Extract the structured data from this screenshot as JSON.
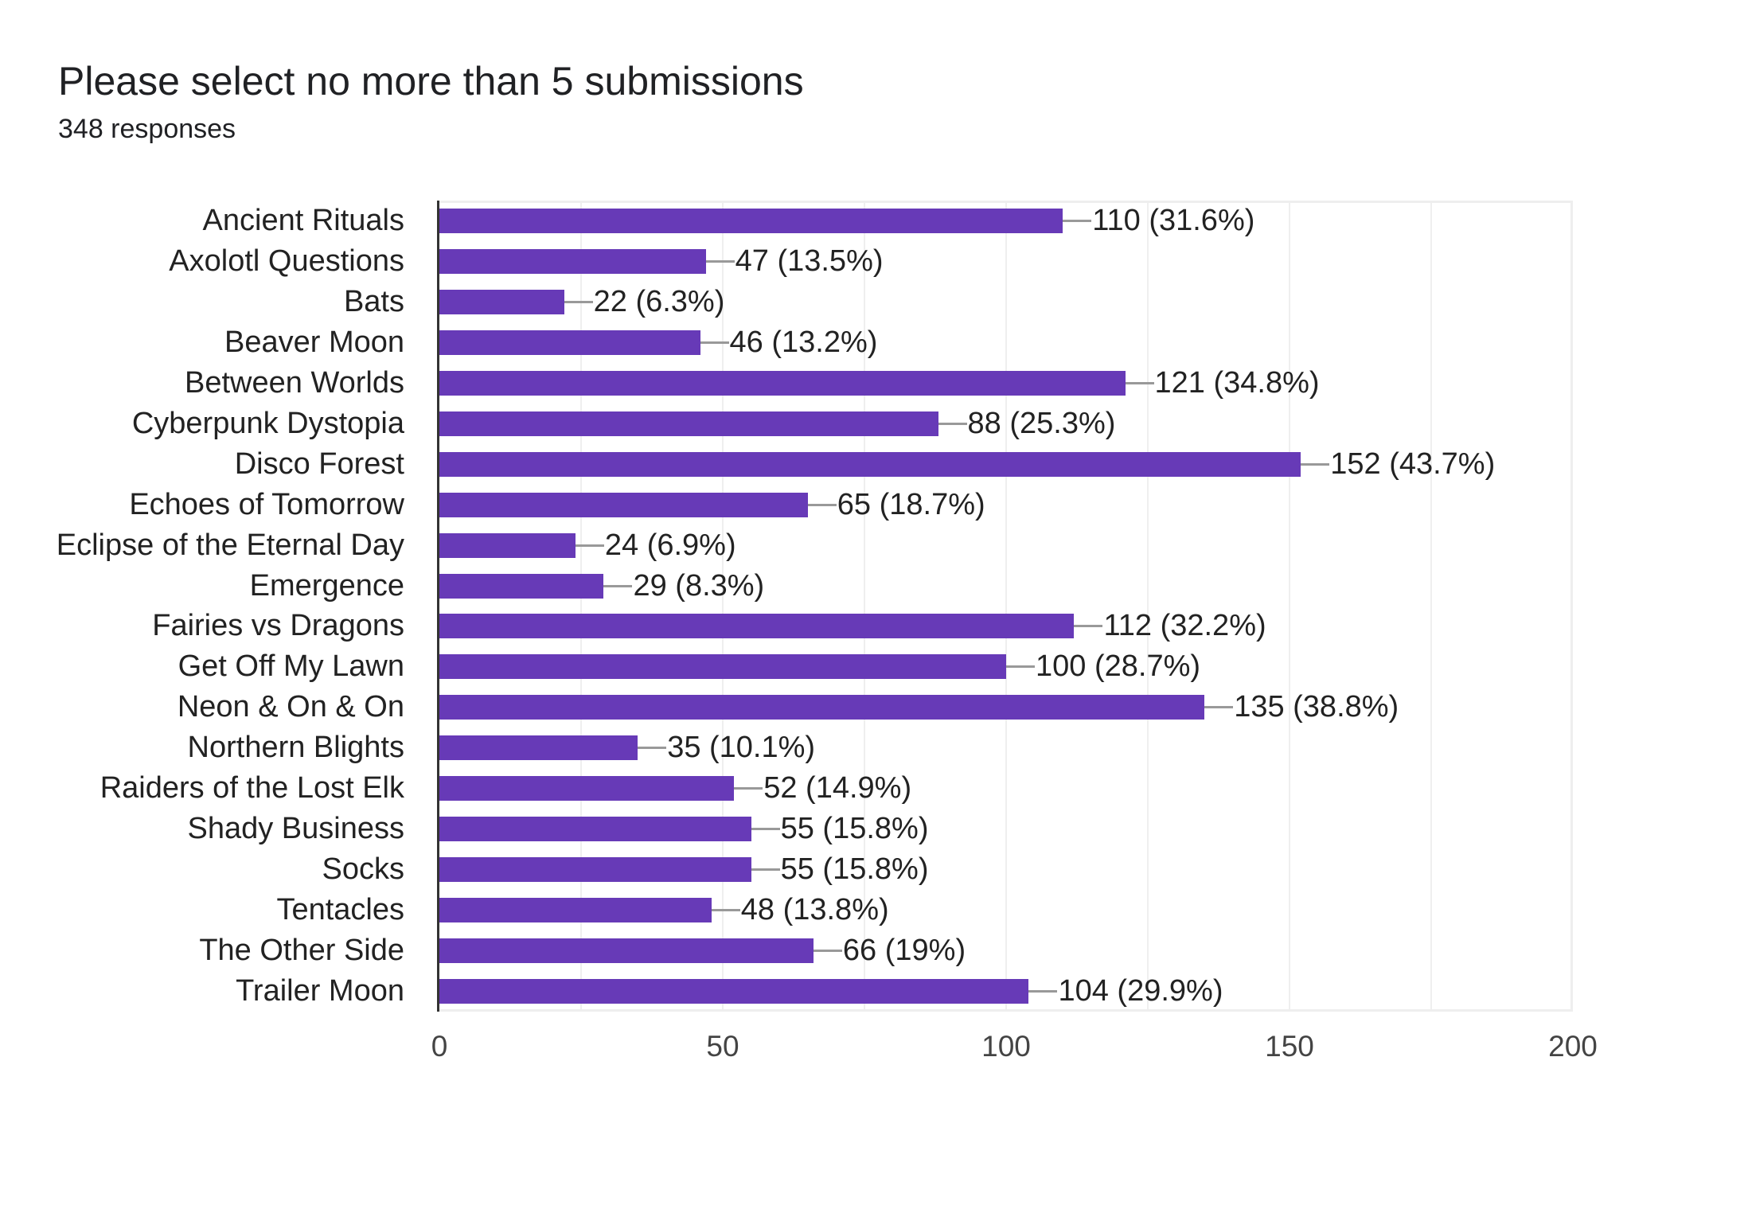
{
  "header": {
    "title": "Please select no more than 5 submissions",
    "subtitle": "348 responses"
  },
  "colors": {
    "bar": "#673ab7",
    "connector": "#999999",
    "gridline": "#efefef",
    "axis": "#333333",
    "text": "#202124"
  },
  "chart_data": {
    "type": "bar",
    "orientation": "horizontal",
    "title": "Please select no more than 5 submissions",
    "subtitle": "348 responses",
    "xlabel": "",
    "ylabel": "",
    "xlim": [
      0,
      200
    ],
    "x_ticks": [
      0,
      50,
      100,
      150,
      200
    ],
    "grid": true,
    "grid_step": 25,
    "legend": "none",
    "categories": [
      "Ancient Rituals",
      "Axolotl Questions",
      "Bats",
      "Beaver Moon",
      "Between Worlds",
      "Cyberpunk Dystopia",
      "Disco Forest",
      "Echoes of Tomorrow",
      "Eclipse of the Eternal Day",
      "Emergence",
      "Fairies vs Dragons",
      "Get Off My Lawn",
      "Neon & On & On",
      "Northern Blights",
      "Raiders of the Lost Elk",
      "Shady Business",
      "Socks",
      "Tentacles",
      "The Other Side",
      "Trailer Moon"
    ],
    "values": [
      110,
      47,
      22,
      46,
      121,
      88,
      152,
      65,
      24,
      29,
      112,
      100,
      135,
      35,
      52,
      55,
      55,
      48,
      66,
      104
    ],
    "percentages": [
      "31.6%",
      "13.5%",
      "6.3%",
      "13.2%",
      "34.8%",
      "25.3%",
      "43.7%",
      "18.7%",
      "6.9%",
      "8.3%",
      "32.2%",
      "28.7%",
      "38.8%",
      "10.1%",
      "14.9%",
      "15.8%",
      "15.8%",
      "13.8%",
      "19%",
      "29.9%"
    ],
    "data_labels": [
      "110 (31.6%)",
      "47 (13.5%)",
      "22 (6.3%)",
      "46 (13.2%)",
      "121 (34.8%)",
      "88 (25.3%)",
      "152 (43.7%)",
      "65 (18.7%)",
      "24 (6.9%)",
      "29 (8.3%)",
      "112 (32.2%)",
      "100 (28.7%)",
      "135 (38.8%)",
      "35 (10.1%)",
      "52 (14.9%)",
      "55 (15.8%)",
      "55 (15.8%)",
      "48 (13.8%)",
      "66 (19%)",
      "104 (29.9%)"
    ]
  },
  "axis": {
    "ticks": [
      "0",
      "50",
      "100",
      "150",
      "200"
    ]
  }
}
